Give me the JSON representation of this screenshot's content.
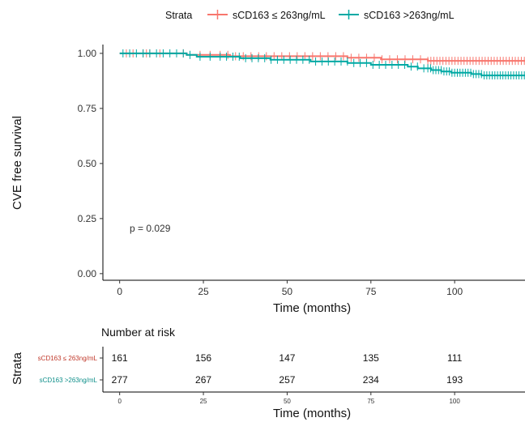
{
  "chart_data": [
    {
      "type": "line",
      "step": true,
      "xlabel": "Time (months)",
      "ylabel": "CVE free survival",
      "xlim": [
        -5,
        121
      ],
      "ylim": [
        -0.03,
        1.04
      ],
      "x_ticks": [
        0,
        25,
        50,
        75,
        100
      ],
      "y_ticks": [
        0.0,
        0.25,
        0.5,
        0.75,
        1.0
      ],
      "y_tick_labels": [
        "0.00",
        "0.25",
        "0.50",
        "0.75",
        "1.00"
      ],
      "grid": false,
      "annotation": "p = 0.029",
      "legend": {
        "title": "Strata",
        "position": "top",
        "entries": [
          "sCD163 ≤ 263ng/mL",
          "sCD163 >263ng/mL"
        ]
      },
      "series": [
        {
          "name": "sCD163 ≤ 263ng/mL",
          "color": "#f8766d",
          "x": [
            0,
            20,
            33,
            68,
            78,
            92,
            121
          ],
          "y": [
            1.0,
            0.993,
            0.987,
            0.98,
            0.973,
            0.966,
            0.966
          ]
        },
        {
          "name": "sCD163 >263ng/mL",
          "color": "#00a9a4",
          "x": [
            0,
            20,
            23,
            36,
            45,
            57,
            68,
            75,
            86,
            89,
            93,
            96,
            99,
            105,
            108,
            121
          ],
          "y": [
            1.0,
            0.993,
            0.985,
            0.978,
            0.971,
            0.963,
            0.956,
            0.948,
            0.94,
            0.932,
            0.924,
            0.918,
            0.912,
            0.906,
            0.9,
            0.9
          ]
        }
      ]
    },
    {
      "type": "table",
      "title": "Number at risk",
      "ylabel": "Strata",
      "xlabel": "Time (months)",
      "x_ticks": [
        0,
        25,
        50,
        75,
        100
      ],
      "rows": [
        {
          "label": "sCD163 ≤ 263ng/mL",
          "color": "#c0392b",
          "values": [
            161,
            156,
            147,
            135,
            111
          ]
        },
        {
          "label": "sCD163 >263ng/mL",
          "color": "#0f8f8a",
          "values": [
            277,
            267,
            257,
            234,
            193
          ]
        }
      ]
    }
  ]
}
